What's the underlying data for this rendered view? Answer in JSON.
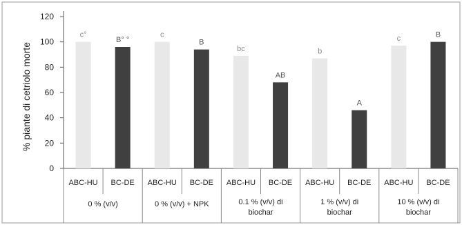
{
  "chart_data": {
    "type": "bar",
    "ylabel": "% piante di cetriolo morte",
    "xlabel": "",
    "ylim": [
      0,
      120
    ],
    "yticks": [
      0,
      20,
      40,
      60,
      80,
      100,
      120
    ],
    "grid": false,
    "series_colors": {
      "ABC-HU": "#e8e8e8",
      "BC-DE": "#404040"
    },
    "groups": [
      {
        "label": [
          "0 % (v/v)"
        ],
        "bars": [
          {
            "category": "ABC-HU",
            "value": 100,
            "label": "c°"
          },
          {
            "category": "BC-DE",
            "value": 96,
            "label": "B° °"
          }
        ]
      },
      {
        "label": [
          "0 % (v/v) + NPK"
        ],
        "bars": [
          {
            "category": "ABC-HU",
            "value": 100,
            "label": "c"
          },
          {
            "category": "BC-DE",
            "value": 94,
            "label": "B"
          }
        ]
      },
      {
        "label": [
          "0.1 % (v/v) di",
          "biochar"
        ],
        "bars": [
          {
            "category": "ABC-HU",
            "value": 89,
            "label": "bc"
          },
          {
            "category": "BC-DE",
            "value": 68,
            "label": "AB"
          }
        ]
      },
      {
        "label": [
          "1 % (v/v) di",
          "biochar"
        ],
        "bars": [
          {
            "category": "ABC-HU",
            "value": 87,
            "label": "b"
          },
          {
            "category": "BC-DE",
            "value": 46,
            "label": "A"
          }
        ]
      },
      {
        "label": [
          "10 % (v/v) di",
          "biochar"
        ],
        "bars": [
          {
            "category": "ABC-HU",
            "value": 97,
            "label": "c"
          },
          {
            "category": "BC-DE",
            "value": 100,
            "label": "B"
          }
        ]
      }
    ]
  }
}
